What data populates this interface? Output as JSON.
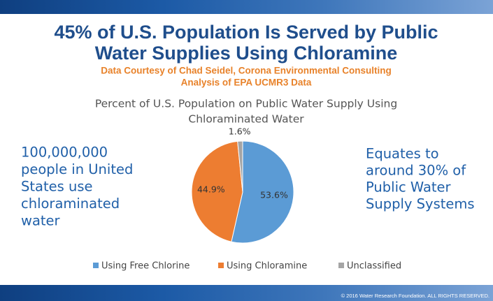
{
  "slide": {
    "title": [
      "45% of U.S. Population Is Served by Public",
      "Water Supplies Using Chloramine"
    ],
    "subtitle": [
      "Data Courtesy of Chad Seidel, Corona Environmental Consulting",
      "Analysis of EPA UCMR3 Data"
    ],
    "left_note": [
      "100,000,000",
      "people in United",
      "States use",
      "chloraminated",
      "water"
    ],
    "right_note": [
      "Equates to",
      "around 30% of",
      "Public Water",
      "Supply Systems"
    ],
    "footer": "© 2016 Water Research Foundation. ALL RIGHTS RESERVED."
  },
  "chart_data": {
    "type": "pie",
    "title": [
      "Percent of U.S. Population on Public Water Supply Using",
      "Chloraminated Water"
    ],
    "categories": [
      "Using Free Chlorine",
      "Using Chloramine",
      "Unclassified"
    ],
    "values": [
      53.6,
      44.9,
      1.6
    ],
    "value_labels": [
      "53.6%",
      "44.9%",
      "1.6%"
    ],
    "colors": [
      "#5b9bd5",
      "#ed7d31",
      "#a5a5a5"
    ],
    "legend": "bottom"
  }
}
